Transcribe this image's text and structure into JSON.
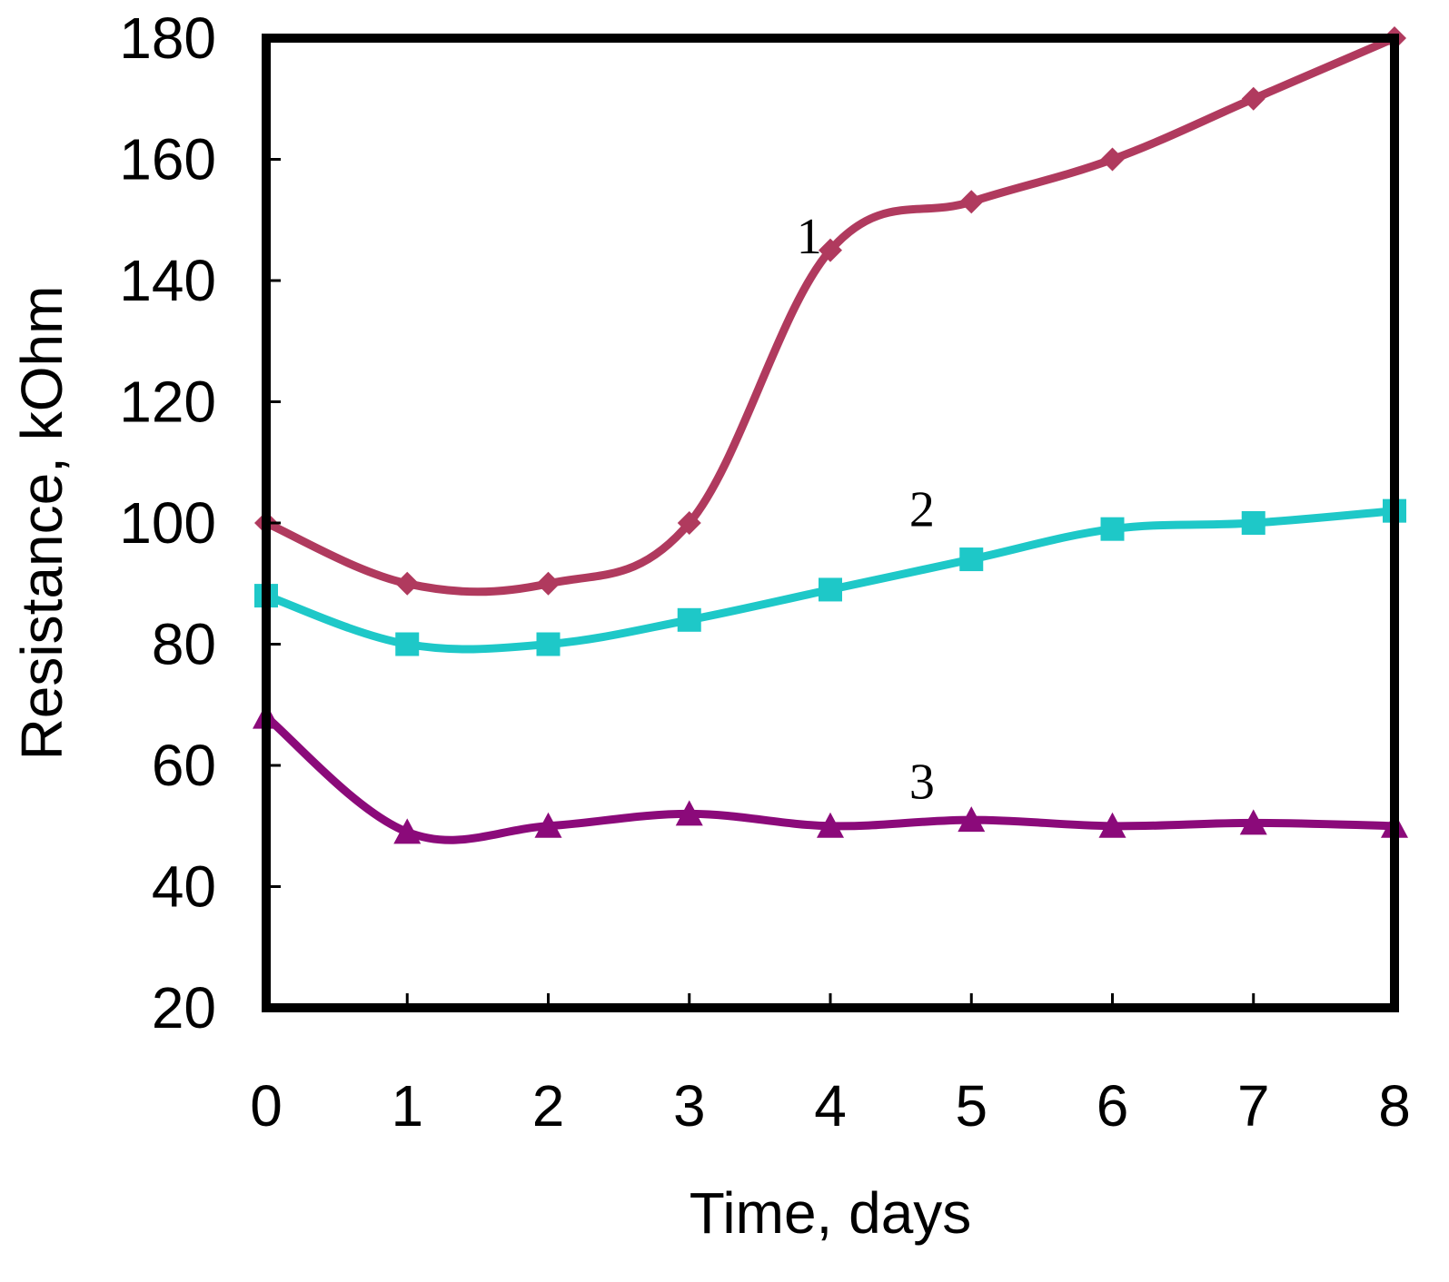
{
  "chart_data": {
    "type": "line",
    "title": "",
    "xlabel": "Time, days",
    "ylabel": "Resistance, kOhm",
    "xlim": [
      0,
      8
    ],
    "ylim": [
      20,
      180
    ],
    "grid": false,
    "x": [
      0,
      1,
      2,
      3,
      4,
      5,
      6,
      7,
      8
    ],
    "x_ticks": [
      "0",
      "1",
      "2",
      "3",
      "4",
      "5",
      "6",
      "7",
      "8"
    ],
    "y_ticks": [
      "20",
      "40",
      "60",
      "80",
      "100",
      "120",
      "140",
      "160",
      "180"
    ],
    "series": [
      {
        "name": "1",
        "color": "#b03a5e",
        "marker": "diamond",
        "values": [
          100,
          90,
          90,
          100,
          145,
          153,
          160,
          170,
          180
        ]
      },
      {
        "name": "2",
        "color": "#1ec8c8",
        "marker": "square",
        "values": [
          88,
          80,
          80,
          84,
          89,
          94,
          99,
          100,
          102
        ]
      },
      {
        "name": "3",
        "color": "#8b0a7a",
        "marker": "triangle",
        "values": [
          68,
          49,
          50,
          52,
          50,
          51,
          50,
          50.5,
          50
        ]
      }
    ],
    "annotations": [
      {
        "text": "1",
        "x": 3.85,
        "y": 144.5
      },
      {
        "text": "2",
        "x": 4.65,
        "y": 99.5
      },
      {
        "text": "3",
        "x": 4.65,
        "y": 54.5
      }
    ]
  }
}
